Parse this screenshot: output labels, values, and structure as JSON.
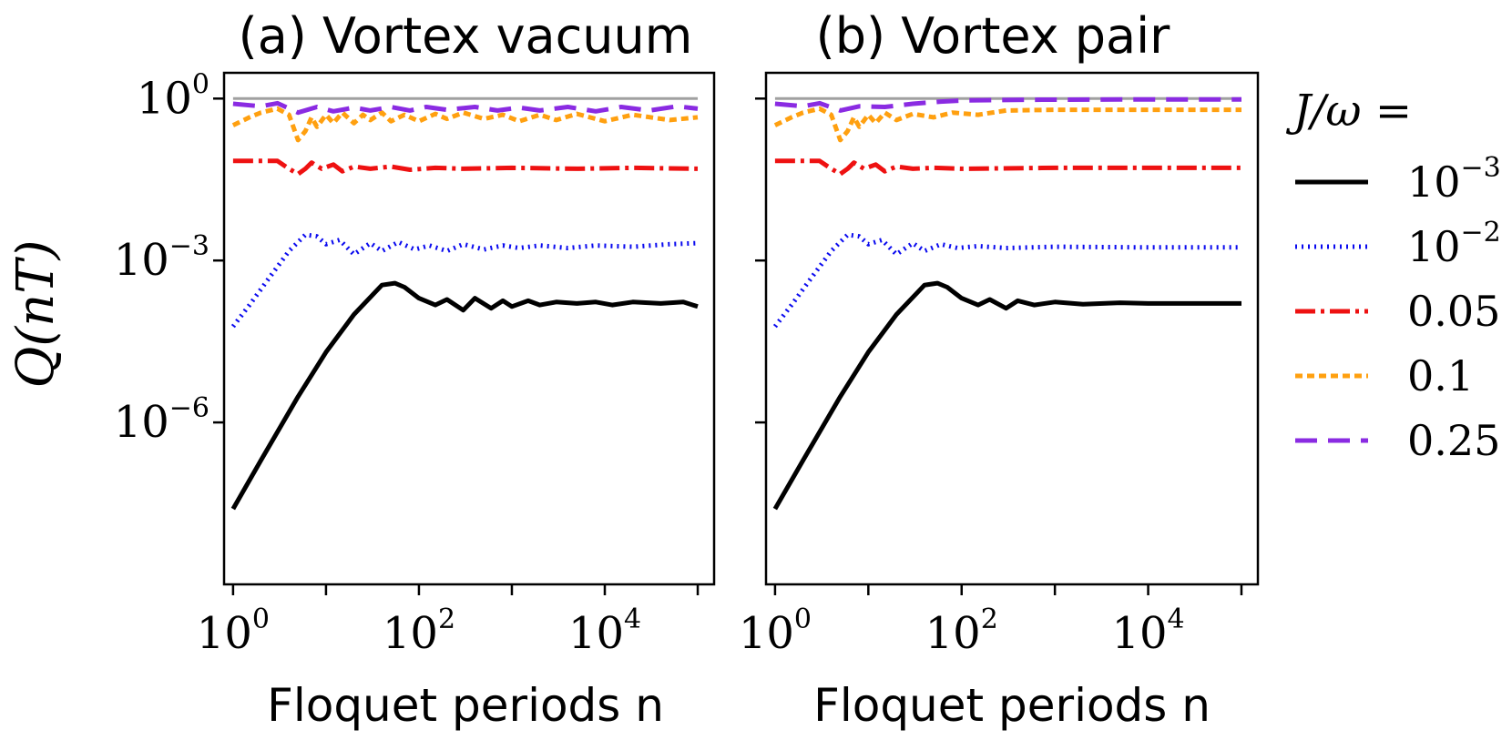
{
  "chart_data": {
    "type": "line",
    "ylabel": "Q(nT)",
    "xlabel": "Floquet periods n",
    "xscale": "log",
    "yscale": "log",
    "xlim": [
      0.8,
      150000
    ],
    "ylim": [
      1e-09,
      3.0
    ],
    "x_ticks": [
      {
        "value": 1,
        "base": "10",
        "exp": "0"
      },
      {
        "value": 100,
        "base": "10",
        "exp": "2"
      },
      {
        "value": 10000,
        "base": "10",
        "exp": "4"
      }
    ],
    "y_ticks": [
      {
        "value": 1,
        "base": "10",
        "exp": "0"
      },
      {
        "value": 0.001,
        "base": "10",
        "exp": "−3"
      },
      {
        "value": 1e-06,
        "base": "10",
        "exp": "−6"
      }
    ],
    "reference_line": {
      "y": 1,
      "color": "#a0a0a0"
    },
    "legend": {
      "title": "J/ω =",
      "location": "right",
      "entries": [
        {
          "key": "s1",
          "base": "10",
          "exp": "−3",
          "text": ""
        },
        {
          "key": "s2",
          "base": "10",
          "exp": "−2",
          "text": ""
        },
        {
          "key": "s3",
          "base": "",
          "exp": "",
          "text": "0.05"
        },
        {
          "key": "s4",
          "base": "",
          "exp": "",
          "text": "0.1"
        },
        {
          "key": "s5",
          "base": "",
          "exp": "",
          "text": "0.25"
        }
      ]
    },
    "styles": {
      "s1": {
        "color": "#000000",
        "dash": ""
      },
      "s2": {
        "color": "#0a0aef",
        "dash": "2 5"
      },
      "s3": {
        "color": "#ee1111",
        "dash": "22 6 4 6"
      },
      "s4": {
        "color": "#ffa010",
        "dash": "8 5"
      },
      "s5": {
        "color": "#8a2be2",
        "dash": "24 12"
      }
    },
    "panels": [
      {
        "title": "(a) Vortex vacuum",
        "series": [
          {
            "key": "s1",
            "points": [
              [
                1,
                2.5e-08
              ],
              [
                2,
                2e-07
              ],
              [
                5,
                3e-06
              ],
              [
                10,
                2e-05
              ],
              [
                20,
                0.0001
              ],
              [
                40,
                0.00035
              ],
              [
                55,
                0.00038
              ],
              [
                70,
                0.00032
              ],
              [
                100,
                0.0002
              ],
              [
                150,
                0.00015
              ],
              [
                200,
                0.00019
              ],
              [
                300,
                0.00012
              ],
              [
                400,
                0.0002
              ],
              [
                600,
                0.00013
              ],
              [
                800,
                0.00018
              ],
              [
                1000,
                0.00014
              ],
              [
                1500,
                0.00018
              ],
              [
                2000,
                0.00015
              ],
              [
                3000,
                0.00017
              ],
              [
                5000,
                0.00016
              ],
              [
                8000,
                0.00017
              ],
              [
                12000,
                0.00015
              ],
              [
                20000,
                0.00017
              ],
              [
                40000,
                0.00016
              ],
              [
                70000,
                0.00017
              ],
              [
                100000,
                0.00014
              ]
            ]
          },
          {
            "key": "s2",
            "points": [
              [
                1,
                6e-05
              ],
              [
                1.5,
                0.00015
              ],
              [
                2.5,
                0.0005
              ],
              [
                4,
                0.0015
              ],
              [
                6,
                0.003
              ],
              [
                8,
                0.0028
              ],
              [
                10,
                0.002
              ],
              [
                14,
                0.0024
              ],
              [
                20,
                0.0013
              ],
              [
                30,
                0.0021
              ],
              [
                40,
                0.0015
              ],
              [
                60,
                0.0022
              ],
              [
                90,
                0.0016
              ],
              [
                130,
                0.0019
              ],
              [
                200,
                0.0015
              ],
              [
                300,
                0.002
              ],
              [
                500,
                0.0016
              ],
              [
                800,
                0.0019
              ],
              [
                1200,
                0.0017
              ],
              [
                2000,
                0.0019
              ],
              [
                4000,
                0.0017
              ],
              [
                8000,
                0.0019
              ],
              [
                20000,
                0.0018
              ],
              [
                50000,
                0.002
              ],
              [
                100000,
                0.0021
              ]
            ]
          },
          {
            "key": "s3",
            "points": [
              [
                1,
                0.07
              ],
              [
                3,
                0.07
              ],
              [
                4,
                0.05
              ],
              [
                5,
                0.04
              ],
              [
                6,
                0.05
              ],
              [
                7,
                0.065
              ],
              [
                9,
                0.05
              ],
              [
                12,
                0.06
              ],
              [
                15,
                0.045
              ],
              [
                20,
                0.055
              ],
              [
                30,
                0.05
              ],
              [
                50,
                0.055
              ],
              [
                80,
                0.048
              ],
              [
                150,
                0.052
              ],
              [
                300,
                0.05
              ],
              [
                1000,
                0.052
              ],
              [
                5000,
                0.05
              ],
              [
                20000,
                0.052
              ],
              [
                100000,
                0.05
              ]
            ]
          },
          {
            "key": "s4",
            "points": [
              [
                1,
                0.32
              ],
              [
                1.5,
                0.45
              ],
              [
                2,
                0.55
              ],
              [
                3,
                0.65
              ],
              [
                4,
                0.5
              ],
              [
                5,
                0.17
              ],
              [
                6,
                0.25
              ],
              [
                7,
                0.45
              ],
              [
                8,
                0.3
              ],
              [
                10,
                0.5
              ],
              [
                12,
                0.35
              ],
              [
                15,
                0.55
              ],
              [
                20,
                0.35
              ],
              [
                25,
                0.5
              ],
              [
                30,
                0.4
              ],
              [
                40,
                0.55
              ],
              [
                50,
                0.38
              ],
              [
                70,
                0.5
              ],
              [
                100,
                0.38
              ],
              [
                150,
                0.52
              ],
              [
                200,
                0.42
              ],
              [
                300,
                0.55
              ],
              [
                500,
                0.42
              ],
              [
                800,
                0.5
              ],
              [
                1200,
                0.38
              ],
              [
                2000,
                0.5
              ],
              [
                3000,
                0.4
              ],
              [
                5000,
                0.52
              ],
              [
                10000,
                0.38
              ],
              [
                20000,
                0.5
              ],
              [
                50000,
                0.4
              ],
              [
                100000,
                0.45
              ]
            ]
          },
          {
            "key": "s5",
            "points": [
              [
                1,
                0.8
              ],
              [
                2,
                0.72
              ],
              [
                3,
                0.82
              ],
              [
                5,
                0.55
              ],
              [
                8,
                0.7
              ],
              [
                12,
                0.58
              ],
              [
                20,
                0.68
              ],
              [
                30,
                0.6
              ],
              [
                50,
                0.7
              ],
              [
                80,
                0.6
              ],
              [
                120,
                0.7
              ],
              [
                200,
                0.62
              ],
              [
                400,
                0.7
              ],
              [
                700,
                0.6
              ],
              [
                1200,
                0.68
              ],
              [
                2000,
                0.6
              ],
              [
                4000,
                0.7
              ],
              [
                8000,
                0.58
              ],
              [
                15000,
                0.7
              ],
              [
                30000,
                0.6
              ],
              [
                60000,
                0.72
              ],
              [
                100000,
                0.65
              ]
            ]
          }
        ]
      },
      {
        "title": "(b) Vortex pair",
        "series": [
          {
            "key": "s1",
            "points": [
              [
                1,
                2.5e-08
              ],
              [
                2,
                2e-07
              ],
              [
                5,
                3e-06
              ],
              [
                10,
                2e-05
              ],
              [
                20,
                0.0001
              ],
              [
                40,
                0.00035
              ],
              [
                55,
                0.00038
              ],
              [
                70,
                0.00032
              ],
              [
                100,
                0.0002
              ],
              [
                150,
                0.00015
              ],
              [
                200,
                0.00019
              ],
              [
                300,
                0.00013
              ],
              [
                400,
                0.00018
              ],
              [
                600,
                0.00015
              ],
              [
                1000,
                0.00017
              ],
              [
                2000,
                0.000155
              ],
              [
                5000,
                0.000165
              ],
              [
                10000,
                0.00016
              ],
              [
                100000,
                0.00016
              ]
            ]
          },
          {
            "key": "s2",
            "points": [
              [
                1,
                6e-05
              ],
              [
                1.5,
                0.00015
              ],
              [
                2.5,
                0.0005
              ],
              [
                4,
                0.0015
              ],
              [
                6,
                0.003
              ],
              [
                8,
                0.0028
              ],
              [
                10,
                0.002
              ],
              [
                14,
                0.0024
              ],
              [
                20,
                0.0013
              ],
              [
                30,
                0.0021
              ],
              [
                40,
                0.0015
              ],
              [
                60,
                0.002
              ],
              [
                90,
                0.0017
              ],
              [
                150,
                0.00185
              ],
              [
                300,
                0.0017
              ],
              [
                1000,
                0.0018
              ],
              [
                10000,
                0.00175
              ],
              [
                100000,
                0.00175
              ]
            ]
          },
          {
            "key": "s3",
            "points": [
              [
                1,
                0.07
              ],
              [
                3,
                0.07
              ],
              [
                4,
                0.05
              ],
              [
                5,
                0.04
              ],
              [
                6,
                0.05
              ],
              [
                7,
                0.065
              ],
              [
                9,
                0.05
              ],
              [
                12,
                0.06
              ],
              [
                15,
                0.045
              ],
              [
                20,
                0.055
              ],
              [
                30,
                0.05
              ],
              [
                50,
                0.052
              ],
              [
                100,
                0.05
              ],
              [
                1000,
                0.052
              ],
              [
                100000,
                0.052
              ]
            ]
          },
          {
            "key": "s4",
            "points": [
              [
                1,
                0.32
              ],
              [
                1.5,
                0.45
              ],
              [
                2,
                0.55
              ],
              [
                3,
                0.65
              ],
              [
                4,
                0.5
              ],
              [
                5,
                0.17
              ],
              [
                6,
                0.25
              ],
              [
                7,
                0.45
              ],
              [
                8,
                0.3
              ],
              [
                10,
                0.5
              ],
              [
                12,
                0.35
              ],
              [
                15,
                0.55
              ],
              [
                20,
                0.4
              ],
              [
                30,
                0.52
              ],
              [
                50,
                0.45
              ],
              [
                80,
                0.55
              ],
              [
                150,
                0.5
              ],
              [
                300,
                0.6
              ],
              [
                1000,
                0.62
              ],
              [
                10000,
                0.62
              ],
              [
                100000,
                0.62
              ]
            ]
          },
          {
            "key": "s5",
            "points": [
              [
                1,
                0.8
              ],
              [
                2,
                0.72
              ],
              [
                3,
                0.82
              ],
              [
                5,
                0.6
              ],
              [
                8,
                0.72
              ],
              [
                15,
                0.7
              ],
              [
                30,
                0.8
              ],
              [
                60,
                0.88
              ],
              [
                100,
                0.92
              ],
              [
                500,
                0.95
              ],
              [
                5000,
                0.96
              ],
              [
                100000,
                0.96
              ]
            ]
          }
        ]
      }
    ]
  }
}
